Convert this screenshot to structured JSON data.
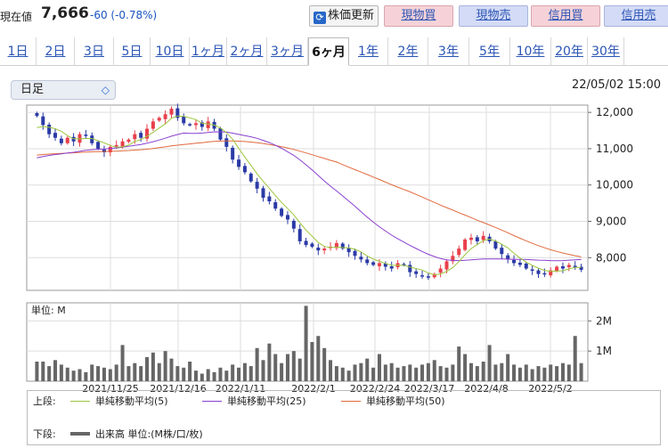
{
  "header": {
    "price_label": "現在値",
    "price": "7,666",
    "change": "-60 (-0.78%)",
    "buttons": [
      {
        "label": "株価更新",
        "icon": "refresh-icon"
      },
      {
        "label": "現物買"
      },
      {
        "label": "現物売"
      },
      {
        "label": "信用買"
      },
      {
        "label": "信用売"
      }
    ]
  },
  "tabs": [
    "1日",
    "2日",
    "3日",
    "5日",
    "10日",
    "1ヶ月",
    "2ヶ月",
    "3ヶ月",
    "6ヶ月",
    "1年",
    "2年",
    "3年",
    "5年",
    "10年",
    "20年",
    "30年"
  ],
  "active_tab": "6ヶ月",
  "selector": {
    "value": "日足",
    "icon": "chevron-updown-icon"
  },
  "timestamp": "22/05/02 15:00",
  "colors": {
    "up": "#e8404b",
    "down": "#2a3aa6",
    "ma5": "#9cc63c",
    "ma25": "#8a3fd1",
    "ma50": "#e06a3e",
    "volume": "#666666"
  },
  "chart_data": [
    {
      "type": "candlestick",
      "ylim": [
        7100,
        12200
      ],
      "y_ticks": [
        "12,000",
        "11,000",
        "10,000",
        "9,000",
        "8,000"
      ],
      "y_tick_values": [
        12000,
        11000,
        10000,
        9000,
        8000
      ],
      "x_labels": [
        "2021/11/25",
        "2021/12/16",
        "2022/1/11",
        "2022/2/1",
        "2022/2/24",
        "2022/3/17",
        "2022/4/8",
        "2022/5/2"
      ],
      "closes": [
        11900,
        11650,
        11400,
        11300,
        11150,
        11300,
        11200,
        11400,
        11350,
        11150,
        11000,
        10900,
        11050,
        11100,
        11200,
        11250,
        11400,
        11300,
        11550,
        11750,
        11850,
        11950,
        12100,
        11850,
        11700,
        11650,
        11700,
        11600,
        11750,
        11550,
        11250,
        11050,
        10700,
        10500,
        10350,
        10100,
        9900,
        9650,
        9550,
        9350,
        9150,
        9050,
        8800,
        8450,
        8350,
        8300,
        8200,
        8250,
        8300,
        8400,
        8250,
        8150,
        8050,
        7950,
        7850,
        7800,
        7850,
        7750,
        7700,
        7850,
        7800,
        7600,
        7550,
        7500,
        7450,
        7550,
        7700,
        7900,
        8050,
        8250,
        8500,
        8550,
        8450,
        8600,
        8450,
        8250,
        8100,
        7950,
        7850,
        7800,
        7700,
        7650,
        7550,
        7550,
        7650,
        7750,
        7700,
        7800,
        7750,
        7666
      ],
      "series": [
        {
          "name": "単純移動平均(5)"
        },
        {
          "name": "単純移動平均(25)"
        },
        {
          "name": "単純移動平均(50)"
        }
      ]
    },
    {
      "type": "bar",
      "unit_label": "単位: M",
      "y_ticks": [
        "2M",
        "1M"
      ],
      "y_tick_values": [
        2,
        1
      ],
      "ylim": [
        0,
        2.6
      ],
      "values": [
        0.65,
        0.65,
        0.5,
        0.7,
        0.55,
        0.45,
        0.35,
        0.4,
        0.3,
        0.55,
        0.5,
        0.45,
        0.4,
        0.55,
        1.2,
        0.5,
        0.6,
        0.5,
        0.8,
        0.95,
        0.6,
        1.0,
        0.75,
        0.5,
        0.45,
        0.65,
        0.35,
        0.25,
        0.4,
        0.3,
        0.45,
        0.35,
        0.55,
        0.45,
        0.6,
        0.5,
        1.1,
        0.7,
        1.25,
        0.9,
        0.6,
        0.9,
        1.0,
        0.75,
        2.5,
        1.3,
        1.5,
        1.1,
        0.7,
        0.5,
        0.45,
        0.35,
        0.55,
        0.6,
        0.75,
        0.45,
        0.9,
        0.55,
        0.6,
        0.45,
        0.5,
        0.55,
        0.45,
        0.55,
        0.6,
        0.7,
        0.5,
        0.45,
        0.55,
        1.15,
        0.9,
        0.6,
        0.5,
        0.65,
        1.2,
        0.55,
        0.6,
        0.9,
        0.55,
        0.45,
        0.55,
        0.4,
        0.5,
        0.45,
        0.55,
        0.5,
        0.6,
        0.55,
        1.5,
        0.6
      ],
      "series": [
        {
          "name": "出来高 単位:(M株/口/枚)"
        }
      ]
    }
  ],
  "legend": {
    "upper_label": "上段:",
    "lower_label": "下段:",
    "items": [
      "単純移動平均(5)",
      "単純移動平均(25)",
      "単純移動平均(50)"
    ],
    "volume": "出来高 単位:(M株/口/枚)"
  }
}
